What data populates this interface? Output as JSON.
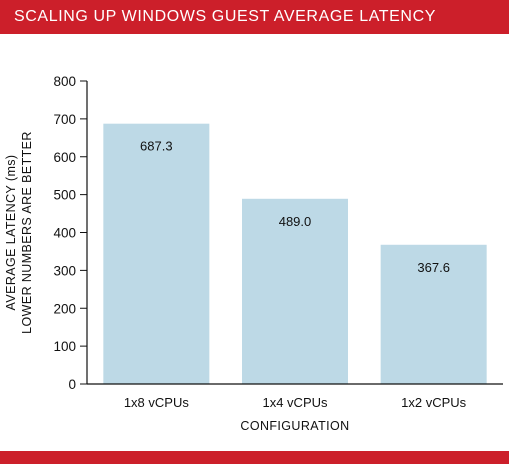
{
  "colors": {
    "accent": "#cc1f2a",
    "bar": "#bdd9e6",
    "axis": "#111111"
  },
  "chart_data": {
    "type": "bar",
    "title": "SCALING UP WINDOWS GUEST AVERAGE LATENCY",
    "categories": [
      "1x8 vCPUs",
      "1x4 vCPUs",
      "1x2 vCPUs"
    ],
    "values": [
      687.3,
      489.0,
      367.6
    ],
    "value_labels": [
      "687.3",
      "489.0",
      "367.6"
    ],
    "xlabel": "CONFIGURATION",
    "ylabel_lines": [
      "AVERAGE LATENCY (ms)",
      "LOWER NUMBERS ARE BETTER"
    ],
    "ylim": [
      0,
      800
    ],
    "yticks": [
      0,
      100,
      200,
      300,
      400,
      500,
      600,
      700,
      800
    ],
    "grid": false,
    "legend": "none"
  }
}
